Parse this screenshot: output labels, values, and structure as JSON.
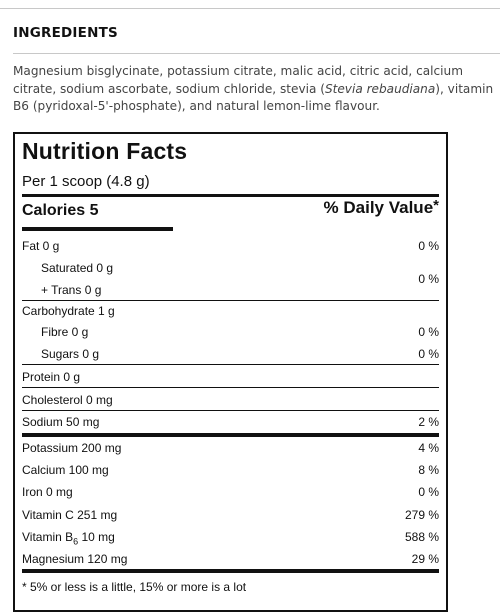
{
  "ingredients": {
    "title": "INGREDIENTS",
    "line1": "Magnesium bisglycinate, potassium citrate, malic acid, citric acid, calcium",
    "line2_a": "citrate, sodium ascorbate, sodium chloride, stevia (",
    "line2_italic": "Stevia rebaudiana",
    "line2_b": "), vitamin",
    "line3": "B6 (pyridoxal-5'-phosphate), and natural lemon-lime flavour."
  },
  "nutrition": {
    "title": "Nutrition Facts",
    "serving": "Per 1 scoop (4.8 g)",
    "calories": "Calories 5",
    "dv_header": "% Daily Value",
    "dv_star": "*",
    "fat": {
      "label": "Fat 0 g",
      "value": "0 %"
    },
    "saturated": {
      "label": "Saturated 0 g"
    },
    "trans": {
      "label": "+ Trans 0 g"
    },
    "sat_trans_value": "0 %",
    "carbohydrate": {
      "label": "Carbohydrate 1 g"
    },
    "fibre": {
      "label": "Fibre 0 g",
      "value": "0 %"
    },
    "sugars": {
      "label": "Sugars 0 g",
      "value": "0 %"
    },
    "protein": {
      "label": "Protein 0 g"
    },
    "cholesterol": {
      "label": "Cholesterol 0 mg"
    },
    "sodium": {
      "label": "Sodium 50 mg",
      "value": "2 %"
    },
    "potassium": {
      "label": "Potassium 200 mg",
      "value": "4 %"
    },
    "calcium": {
      "label": "Calcium 100 mg",
      "value": "8 %"
    },
    "iron": {
      "label": "Iron 0 mg",
      "value": "0 %"
    },
    "vitamin_c": {
      "label": "Vitamin C 251 mg",
      "value": "279 %"
    },
    "vitamin_b6": {
      "label_a": "Vitamin B",
      "label_sub": "6",
      "label_b": " 10 mg",
      "value": "588 %"
    },
    "magnesium": {
      "label": "Magnesium 120 mg",
      "value": "29 %"
    },
    "footnote": "* 5% or less is a little, 15% or more is a lot"
  }
}
